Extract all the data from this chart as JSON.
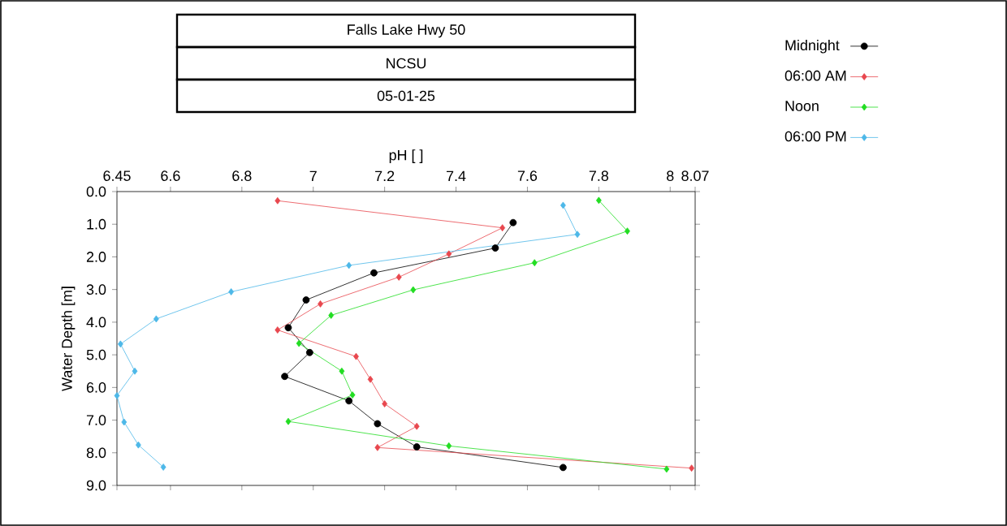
{
  "chart_data": {
    "type": "line",
    "title": "Falls Lake Hwy 50",
    "subtitle": "NCSU",
    "annotations": [
      "05-01-25"
    ],
    "xlabel": "pH [ ]",
    "ylabel": "Water Depth [m]",
    "xlim": [
      6.45,
      8.07
    ],
    "xticks": [
      6.45,
      6.6,
      6.8,
      7,
      7.2,
      7.4,
      7.6,
      7.8,
      8,
      8.07
    ],
    "ylim": [
      9,
      0
    ],
    "yticks": [
      {
        "value": 0,
        "label": "0.0"
      },
      {
        "value": 1,
        "label": "1.0"
      },
      {
        "value": 2,
        "label": "2.0"
      },
      {
        "value": 3,
        "label": "3.0"
      },
      {
        "value": 4,
        "label": "4.0"
      },
      {
        "value": 5,
        "label": "5.0"
      },
      {
        "value": 6,
        "label": "6.0"
      },
      {
        "value": 7,
        "label": "7.0"
      },
      {
        "value": 8,
        "label": "8.0"
      },
      {
        "value": 9,
        "label": "9.0"
      }
    ],
    "legend": "top right",
    "grid": false,
    "line_style": "solid",
    "series": [
      {
        "name": "Midnight",
        "color": "#000000",
        "marker": "circle",
        "x": [
          7.56,
          7.51,
          7.17,
          6.98,
          6.93,
          6.99,
          6.92,
          7.1,
          7.18,
          7.29,
          7.7
        ],
        "values": [
          0.95,
          1.73,
          2.49,
          3.32,
          4.17,
          4.93,
          5.66,
          6.41,
          7.11,
          7.82,
          8.45
        ]
      },
      {
        "name": "06:00 AM",
        "color": "#e8474e",
        "marker": "diamond",
        "x": [
          6.9,
          7.53,
          7.38,
          7.24,
          7.02,
          6.9,
          7.12,
          7.16,
          7.2,
          7.29,
          7.18,
          8.06
        ],
        "values": [
          0.28,
          1.11,
          1.91,
          2.62,
          3.44,
          4.24,
          5.05,
          5.75,
          6.5,
          7.19,
          7.84,
          8.47
        ]
      },
      {
        "name": "Noon",
        "color": "#22dd22",
        "marker": "diamond",
        "x": [
          7.8,
          7.88,
          7.62,
          7.28,
          7.05,
          6.96,
          7.08,
          7.11,
          6.93,
          7.38,
          7.99
        ],
        "values": [
          0.27,
          1.21,
          2.18,
          3.01,
          3.79,
          4.65,
          5.5,
          6.23,
          7.04,
          7.79,
          8.5
        ]
      },
      {
        "name": "06:00 PM",
        "color": "#4db8e8",
        "marker": "diamond",
        "x": [
          7.7,
          7.74,
          7.1,
          6.77,
          6.56,
          6.46,
          6.5,
          6.45,
          6.47,
          6.51,
          6.58
        ],
        "values": [
          0.42,
          1.31,
          2.26,
          3.07,
          3.9,
          4.67,
          5.5,
          6.25,
          7.06,
          7.76,
          8.44
        ]
      }
    ]
  }
}
